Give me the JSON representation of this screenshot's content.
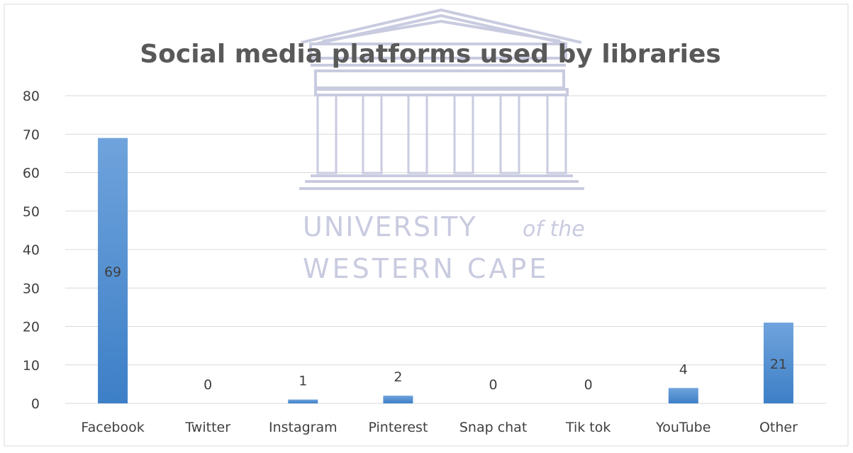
{
  "watermark": {
    "line1": "UNIVERSITY",
    "line1_suffix": "of the",
    "line2": "WESTERN CAPE"
  },
  "chart_data": {
    "type": "bar",
    "title": "Social media platforms used by libraries",
    "xlabel": "",
    "ylabel": "",
    "categories": [
      "Facebook",
      "Twitter",
      "Instagram",
      "Pinterest",
      "Snap chat",
      "Tik tok",
      "YouTube",
      "Other"
    ],
    "values": [
      69,
      0,
      1,
      2,
      0,
      0,
      4,
      21
    ],
    "data_labels": [
      "69",
      "0",
      "1",
      "2",
      "0",
      "0",
      "4",
      "21"
    ],
    "ylim": [
      0,
      80
    ],
    "yticks": [
      "0",
      "10",
      "20",
      "30",
      "40",
      "50",
      "60",
      "70",
      "80"
    ],
    "grid": true,
    "legend": "none",
    "colors": {
      "bar_top": "#6fa3dc",
      "bar_bottom": "#3d7fc7",
      "grid": "#d9d9d9",
      "title": "#595959",
      "tick": "#404040",
      "watermark": "#c9cbe0"
    }
  }
}
